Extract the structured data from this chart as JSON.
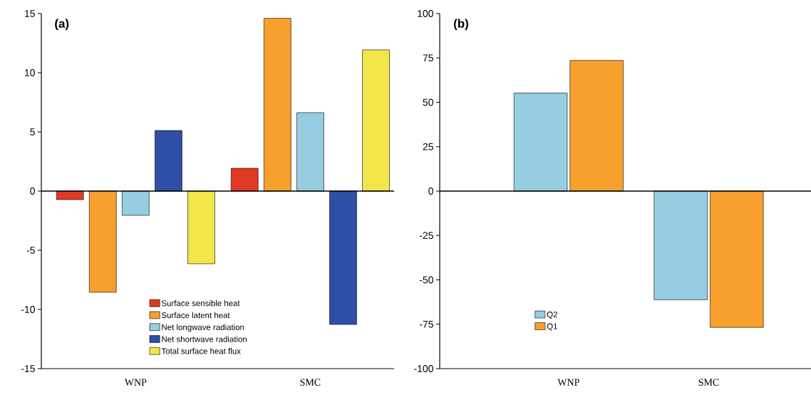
{
  "chart_data": [
    {
      "type": "bar",
      "title": "(a)",
      "categories": [
        "WNP",
        "SMC"
      ],
      "series": [
        {
          "name": "Surface sensible heat",
          "color": "#e03a25",
          "values": [
            -0.72,
            1.93
          ]
        },
        {
          "name": "Surface latent heat",
          "color": "#f7a02e",
          "values": [
            -8.55,
            14.6
          ]
        },
        {
          "name": "Net longwave radiation",
          "color": "#96cde0",
          "values": [
            -2.05,
            6.63
          ]
        },
        {
          "name": "Net shortwave radiation",
          "color": "#2f4ea6",
          "values": [
            5.12,
            -11.27
          ]
        },
        {
          "name": "Total surface heat flux",
          "color": "#f2e64a",
          "values": [
            -6.14,
            11.93
          ]
        }
      ],
      "ylim": [
        -15,
        15
      ],
      "yticks": [
        -15,
        -10,
        -5,
        0,
        5,
        10,
        15
      ],
      "ref_lines": [
        {
          "axis": "y",
          "value": 0
        }
      ],
      "legend": "bottom"
    },
    {
      "type": "bar",
      "title": "(b)",
      "categories": [
        "WNP",
        "SMC"
      ],
      "series": [
        {
          "name": "Q2",
          "color": "#96cde0",
          "values": [
            55.2,
            -61.2
          ]
        },
        {
          "name": "Q1",
          "color": "#f7a02e",
          "values": [
            73.6,
            -76.8
          ]
        }
      ],
      "ylim": [
        -100,
        100
      ],
      "yticks": [
        -100,
        -75,
        -50,
        -25,
        0,
        25,
        50,
        75,
        100
      ],
      "ref_lines": [
        {
          "axis": "y",
          "value": 0
        }
      ],
      "legend": "bottom left"
    }
  ]
}
